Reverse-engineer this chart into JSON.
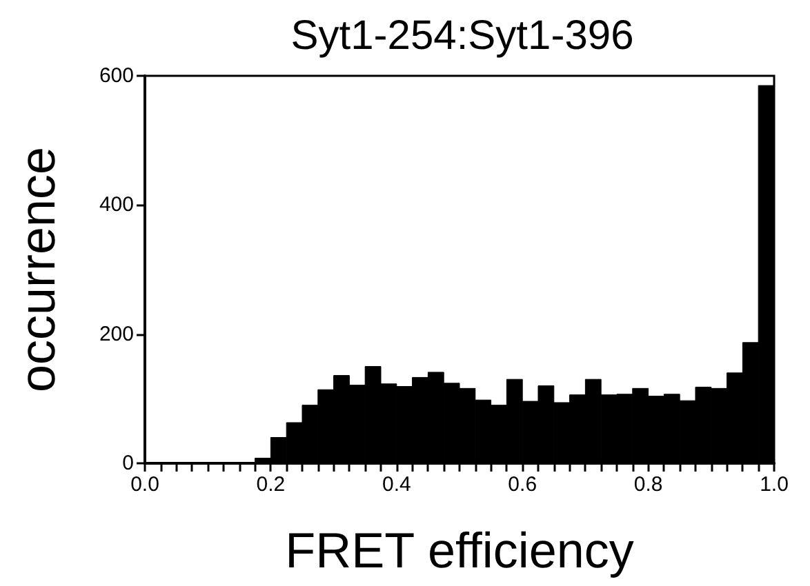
{
  "chart_data": {
    "type": "histogram",
    "title": "Syt1-254:Syt1-396",
    "xlabel": "FRET efficiency",
    "ylabel": "occurrence",
    "color": "#000000",
    "bins": [
      0,
      0.025,
      0.05,
      0.075,
      0.1,
      0.125,
      0.15,
      0.175,
      0.2,
      0.225,
      0.25,
      0.275,
      0.3,
      0.325,
      0.35,
      0.375,
      0.4,
      0.425,
      0.45,
      0.475,
      0.5,
      0.525,
      0.55,
      0.575,
      0.6,
      0.625,
      0.65,
      0.675,
      0.7,
      0.725,
      0.75,
      0.775,
      0.8,
      0.825,
      0.85,
      0.875,
      0.9,
      0.925,
      0.95,
      0.975,
      1
    ],
    "values": [
      0,
      0,
      0,
      0,
      0,
      0,
      0,
      8,
      40,
      63,
      90,
      114,
      136,
      121,
      150,
      123,
      119,
      133,
      141,
      124,
      116,
      98,
      90,
      130,
      96,
      120,
      94,
      106,
      130,
      106,
      107,
      116,
      104,
      107,
      97,
      118,
      116,
      140,
      187,
      585
    ],
    "xlim": [
      0,
      1
    ],
    "ylim": [
      0,
      600
    ],
    "xticks": [
      {
        "value": 0,
        "label": "0.0"
      },
      {
        "value": 0.025,
        "label": null
      },
      {
        "value": 0.05,
        "label": null
      },
      {
        "value": 0.075,
        "label": null
      },
      {
        "value": 0.1,
        "label": null
      },
      {
        "value": 0.125,
        "label": null
      },
      {
        "value": 0.15,
        "label": null
      },
      {
        "value": 0.175,
        "label": null
      },
      {
        "value": 0.2,
        "label": "0.2"
      },
      {
        "value": 0.225,
        "label": null
      },
      {
        "value": 0.25,
        "label": null
      },
      {
        "value": 0.275,
        "label": null
      },
      {
        "value": 0.3,
        "label": null
      },
      {
        "value": 0.325,
        "label": null
      },
      {
        "value": 0.35,
        "label": null
      },
      {
        "value": 0.375,
        "label": null
      },
      {
        "value": 0.4,
        "label": "0.4"
      },
      {
        "value": 0.425,
        "label": null
      },
      {
        "value": 0.45,
        "label": null
      },
      {
        "value": 0.475,
        "label": null
      },
      {
        "value": 0.5,
        "label": null
      },
      {
        "value": 0.525,
        "label": null
      },
      {
        "value": 0.55,
        "label": null
      },
      {
        "value": 0.575,
        "label": null
      },
      {
        "value": 0.6,
        "label": "0.6"
      },
      {
        "value": 0.625,
        "label": null
      },
      {
        "value": 0.65,
        "label": null
      },
      {
        "value": 0.675,
        "label": null
      },
      {
        "value": 0.7,
        "label": null
      },
      {
        "value": 0.725,
        "label": null
      },
      {
        "value": 0.75,
        "label": null
      },
      {
        "value": 0.775,
        "label": null
      },
      {
        "value": 0.8,
        "label": "0.8"
      },
      {
        "value": 0.825,
        "label": null
      },
      {
        "value": 0.85,
        "label": null
      },
      {
        "value": 0.875,
        "label": null
      },
      {
        "value": 0.9,
        "label": null
      },
      {
        "value": 0.925,
        "label": null
      },
      {
        "value": 0.95,
        "label": null
      },
      {
        "value": 0.975,
        "label": null
      },
      {
        "value": 1,
        "label": "1.0"
      }
    ],
    "yticks": [
      0,
      200,
      400,
      600
    ]
  }
}
